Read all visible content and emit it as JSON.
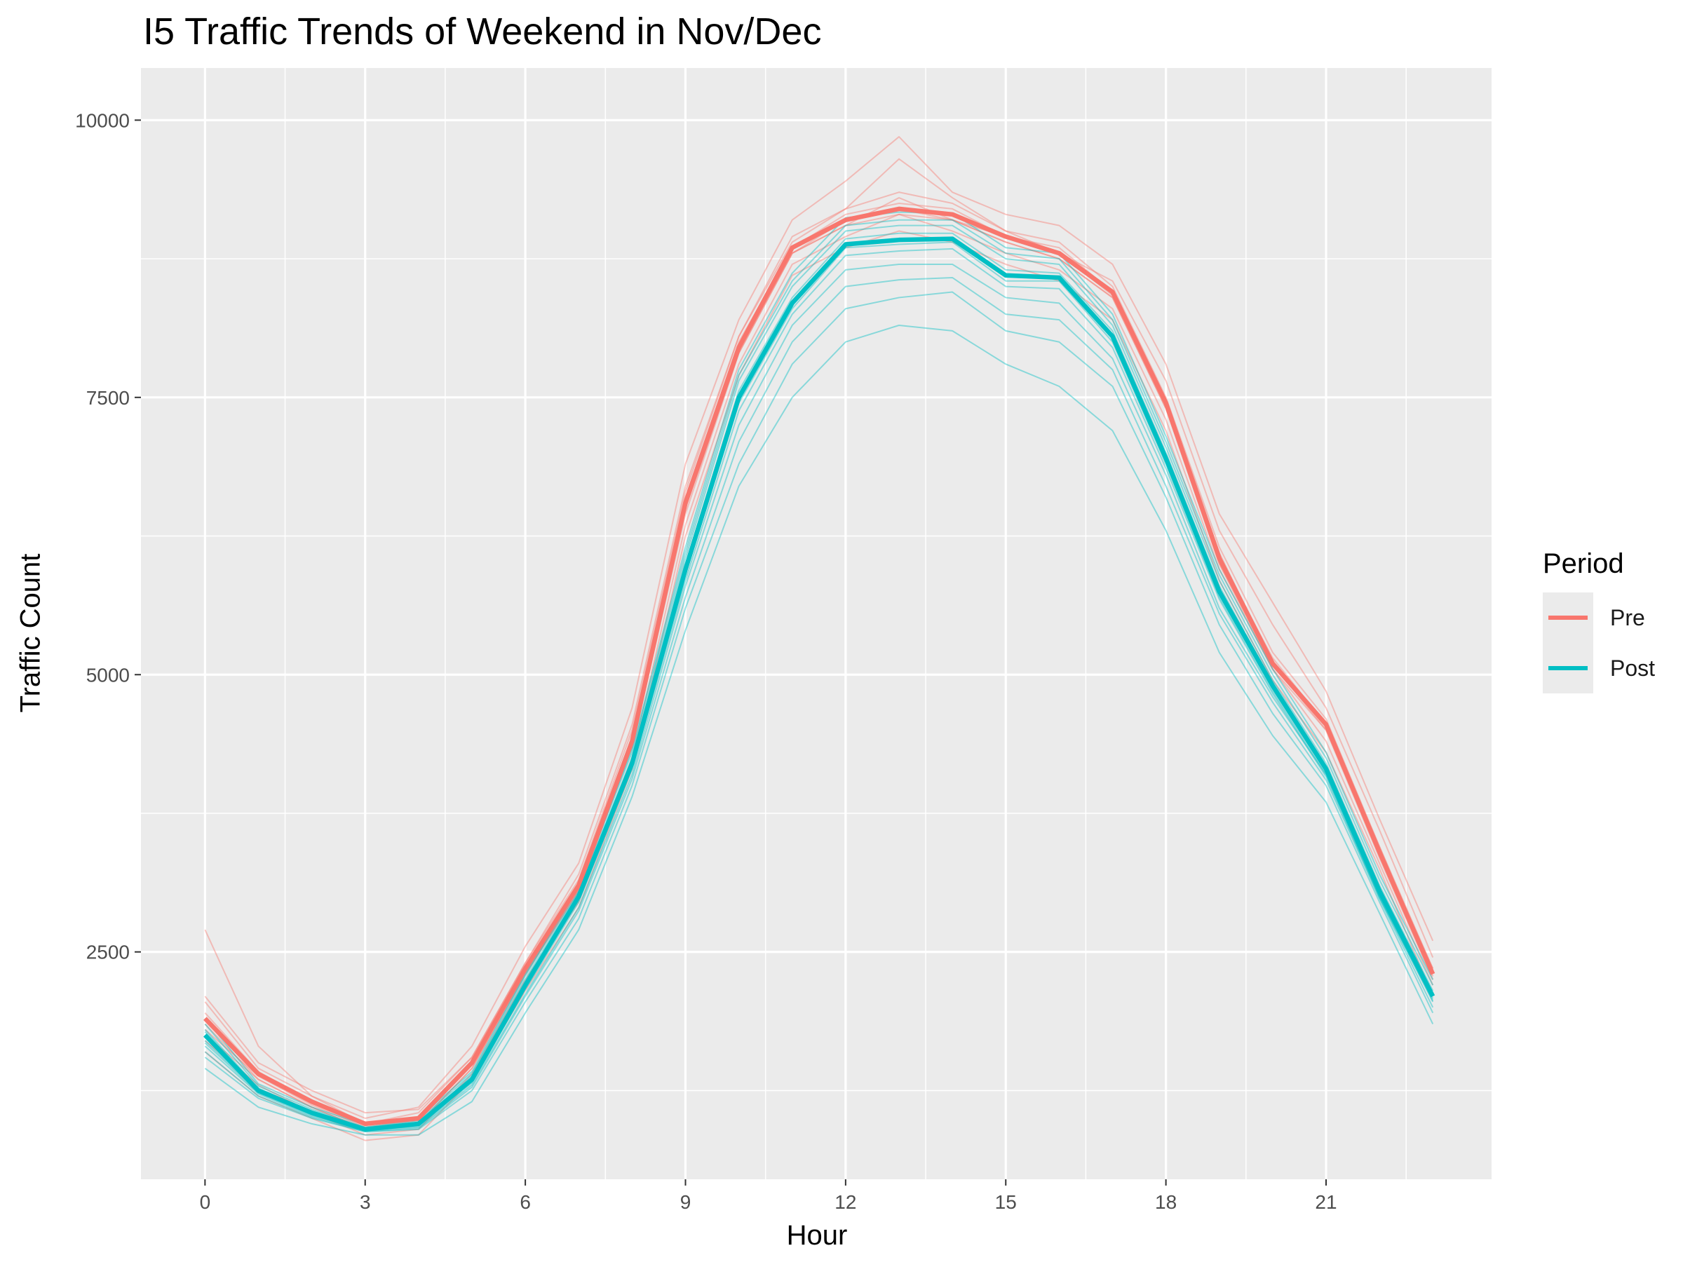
{
  "chart_data": {
    "type": "line",
    "title": "I5 Traffic Trends of Weekend in Nov/Dec",
    "xlabel": "Hour",
    "ylabel": "Traffic Count",
    "xlim": [
      -1.2,
      24.1
    ],
    "ylim": [
      450,
      10470
    ],
    "x_ticks": [
      0,
      3,
      6,
      9,
      12,
      15,
      18,
      21
    ],
    "y_ticks": [
      2500,
      5000,
      7500,
      10000
    ],
    "grid": true,
    "legend_title": "Period",
    "legend_position": "right",
    "x": [
      0,
      1,
      2,
      3,
      4,
      5,
      6,
      7,
      8,
      9,
      10,
      11,
      12,
      13,
      14,
      15,
      16,
      17,
      18,
      19,
      20,
      21,
      22,
      23
    ],
    "series": [
      {
        "name": "Pre",
        "color": "#F8766D",
        "values": [
          1900,
          1400,
          1150,
          950,
          1000,
          1500,
          2350,
          3100,
          4400,
          6550,
          7950,
          8850,
          9100,
          9200,
          9150,
          8950,
          8800,
          8450,
          7450,
          6050,
          5100,
          4550,
          3400,
          2300
        ]
      },
      {
        "name": "Post",
        "color": "#00BFC4",
        "values": [
          1750,
          1250,
          1050,
          900,
          950,
          1350,
          2200,
          3000,
          4200,
          5950,
          7500,
          8350,
          8880,
          8920,
          8930,
          8600,
          8580,
          8050,
          6950,
          5750,
          4900,
          4150,
          3050,
          2100
        ]
      }
    ],
    "individual_days": {
      "Pre": [
        [
          2700,
          1650,
          1200,
          1000,
          1100,
          1650,
          2550,
          3300,
          4700,
          6900,
          8200,
          9100,
          9450,
          9850,
          9350,
          9150,
          9050,
          8700,
          7800,
          6450,
          5650,
          4850,
          3700,
          2600
        ],
        [
          2100,
          1500,
          1250,
          1050,
          1080,
          1550,
          2400,
          3200,
          4550,
          6700,
          8050,
          8900,
          9200,
          9650,
          9300,
          9000,
          8800,
          8550,
          7650,
          6300,
          5450,
          4700,
          3600,
          2450
        ],
        [
          1850,
          1350,
          1100,
          900,
          950,
          1450,
          2300,
          3050,
          4350,
          6500,
          7900,
          8800,
          9050,
          9300,
          9100,
          8900,
          8750,
          8400,
          7400,
          6050,
          5150,
          4550,
          3450,
          2300
        ],
        [
          1700,
          1300,
          1050,
          850,
          900,
          1400,
          2250,
          2950,
          4250,
          6350,
          7800,
          8700,
          8950,
          9150,
          9000,
          8800,
          8650,
          8300,
          7300,
          5950,
          5050,
          4400,
          3300,
          2200
        ],
        [
          1950,
          1420,
          1150,
          950,
          1000,
          1500,
          2350,
          3100,
          4400,
          6600,
          8000,
          8850,
          9150,
          9250,
          9200,
          8950,
          8850,
          8450,
          7450,
          6100,
          5100,
          4550,
          3400,
          2350
        ],
        [
          1600,
          1200,
          1000,
          800,
          850,
          1350,
          2150,
          2900,
          4150,
          6250,
          7700,
          8600,
          8850,
          9000,
          8900,
          8700,
          8550,
          8200,
          7200,
          5850,
          4950,
          4300,
          3250,
          2100
        ],
        [
          2050,
          1450,
          1200,
          950,
          1050,
          1550,
          2400,
          3150,
          4500,
          6650,
          8050,
          8950,
          9200,
          9350,
          9250,
          9000,
          8900,
          8500,
          7500,
          6150,
          5200,
          4600,
          3450,
          2350
        ],
        [
          1800,
          1380,
          1120,
          920,
          980,
          1480,
          2320,
          3080,
          4380,
          6500,
          7950,
          8800,
          9100,
          9200,
          9100,
          8950,
          8800,
          8420,
          7420,
          6000,
          5100,
          4500,
          3380,
          2280
        ],
        [
          1900,
          1400,
          1150,
          950,
          1000,
          1500,
          2350,
          3100,
          4400,
          6550,
          7950,
          8850,
          9100,
          9200,
          9150,
          8950,
          8800,
          8450,
          7450,
          6050,
          5100,
          4550,
          3400,
          2300
        ],
        [
          1750,
          1350,
          1100,
          900,
          950,
          1450,
          2300,
          3050,
          4350,
          6450,
          7900,
          8800,
          9050,
          9150,
          9100,
          8900,
          8750,
          8400,
          7400,
          6000,
          5050,
          4500,
          3350,
          2250
        ]
      ],
      "Post": [
        [
          1450,
          1100,
          950,
          850,
          850,
          1150,
          1950,
          2700,
          3900,
          5400,
          6700,
          7500,
          8000,
          8150,
          8100,
          7800,
          7600,
          7200,
          6300,
          5200,
          4450,
          3850,
          2850,
          1850
        ],
        [
          1550,
          1180,
          1000,
          880,
          900,
          1250,
          2050,
          2800,
          4000,
          5600,
          6900,
          7800,
          8300,
          8400,
          8450,
          8100,
          8000,
          7600,
          6600,
          5450,
          4650,
          4000,
          2950,
          1950
        ],
        [
          1650,
          1220,
          1020,
          890,
          920,
          1300,
          2120,
          2900,
          4100,
          5800,
          7250,
          8150,
          8650,
          8700,
          8700,
          8400,
          8350,
          7850,
          6800,
          5600,
          4800,
          4100,
          3000,
          2050
        ],
        [
          1750,
          1250,
          1050,
          900,
          950,
          1350,
          2200,
          3000,
          4200,
          5950,
          7500,
          8350,
          8880,
          8920,
          8930,
          8600,
          8580,
          8050,
          6950,
          5750,
          4900,
          4150,
          3050,
          2100
        ],
        [
          1850,
          1290,
          1080,
          920,
          980,
          1400,
          2280,
          3080,
          4300,
          6100,
          7700,
          8550,
          9050,
          9100,
          9100,
          8800,
          8750,
          8200,
          7100,
          5900,
          5000,
          4250,
          3150,
          2200
        ],
        [
          1800,
          1270,
          1060,
          910,
          960,
          1380,
          2250,
          3050,
          4250,
          6050,
          7650,
          8500,
          9000,
          9050,
          9050,
          8750,
          8700,
          8150,
          7050,
          5850,
          4950,
          4200,
          3100,
          2150
        ],
        [
          1700,
          1240,
          1040,
          895,
          940,
          1330,
          2180,
          2980,
          4180,
          5900,
          7450,
          8300,
          8850,
          8880,
          8900,
          8550,
          8550,
          8000,
          6900,
          5700,
          4850,
          4100,
          3000,
          2080
        ],
        [
          1900,
          1310,
          1100,
          940,
          1000,
          1420,
          2300,
          3100,
          4330,
          6150,
          7750,
          8620,
          9120,
          9170,
          9160,
          8850,
          8800,
          8250,
          7150,
          5950,
          5050,
          4300,
          3200,
          2250
        ],
        [
          1600,
          1200,
          1010,
          880,
          910,
          1280,
          2100,
          2870,
          4060,
          5700,
          7100,
          8000,
          8500,
          8560,
          8580,
          8250,
          8200,
          7750,
          6700,
          5550,
          4750,
          4050,
          2980,
          2000
        ],
        [
          1780,
          1260,
          1055,
          905,
          955,
          1360,
          2220,
          3020,
          4220,
          5990,
          7560,
          8400,
          8930,
          8980,
          8980,
          8650,
          8620,
          8100,
          7000,
          5800,
          4920,
          4170,
          3070,
          2120
        ],
        [
          1680,
          1230,
          1030,
          890,
          930,
          1320,
          2160,
          2950,
          4150,
          5850,
          7380,
          8250,
          8780,
          8820,
          8840,
          8500,
          8480,
          7950,
          6860,
          5680,
          4830,
          4080,
          2990,
          2060
        ]
      ]
    }
  }
}
